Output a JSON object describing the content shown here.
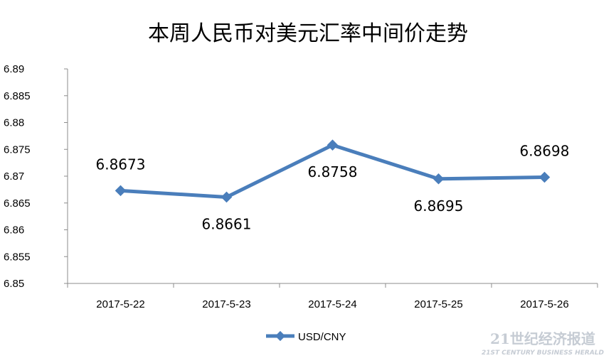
{
  "chart_data": {
    "type": "line",
    "title": "本周人民币对美元汇率中间价走势",
    "categories": [
      "2017-5-22",
      "2017-5-23",
      "2017-5-24",
      "2017-5-25",
      "2017-5-26"
    ],
    "series": [
      {
        "name": "USD/CNY",
        "values": [
          6.8673,
          6.8661,
          6.8758,
          6.8695,
          6.8698
        ],
        "labels": [
          "6.8673",
          "6.8661",
          "6.8758",
          "6.8695",
          "6.8698"
        ],
        "label_positions": [
          "above",
          "below",
          "below",
          "below",
          "above"
        ],
        "color": "#4a7ebb"
      }
    ],
    "y_ticks": [
      "6.85",
      "6.855",
      "6.86",
      "6.865",
      "6.87",
      "6.875",
      "6.88",
      "6.885",
      "6.89"
    ],
    "ylim": [
      6.85,
      6.89
    ],
    "grid": false,
    "legend": "bottom",
    "axis_color": "#8c8c8c"
  },
  "watermark": {
    "cn": "21世纪经济报道",
    "en": "21ST CENTURY BUSINESS HERALD"
  }
}
